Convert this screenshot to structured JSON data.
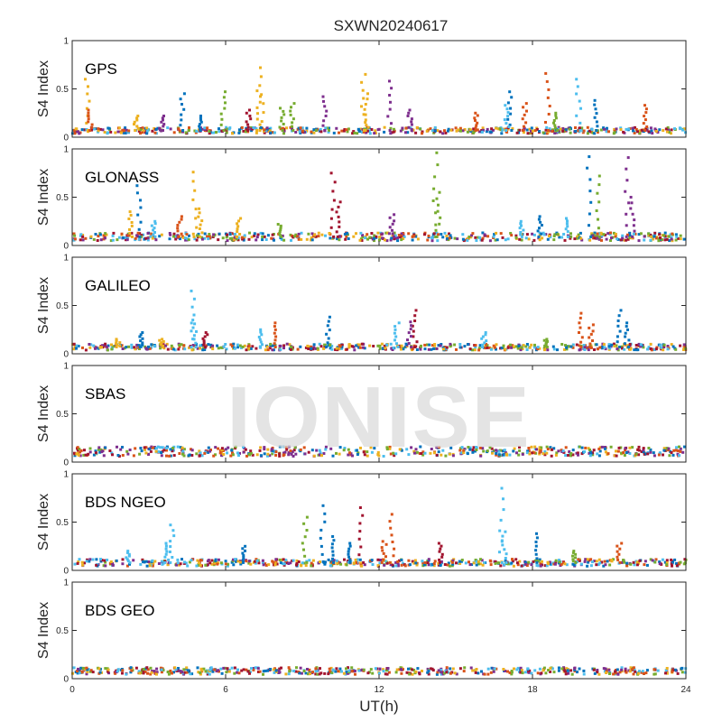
{
  "chart_data": {
    "type": "scatter",
    "title": "SXWN20240617",
    "xlabel": "UT(h)",
    "xlim": [
      0,
      24
    ],
    "xticks": [
      "0",
      "6",
      "12",
      "18",
      "24"
    ],
    "grid": false,
    "watermark": "IONISE",
    "series_colors": [
      "#0072BD",
      "#D95319",
      "#EDB120",
      "#7E2F8E",
      "#77AC30",
      "#4DBEEE",
      "#A2142F"
    ],
    "panels": [
      {
        "label": "GPS",
        "ylabel": "S4 Index",
        "ylim": [
          0,
          1
        ],
        "yticks": [
          "0",
          "0.5",
          "1"
        ],
        "baseline": 0.07,
        "spikes": [
          {
            "x": 0.6,
            "y": 0.6,
            "c": 2
          },
          {
            "x": 0.7,
            "y": 0.28,
            "c": 1
          },
          {
            "x": 2.5,
            "y": 0.22,
            "c": 2
          },
          {
            "x": 3.5,
            "y": 0.22,
            "c": 3
          },
          {
            "x": 4.3,
            "y": 0.45,
            "c": 0
          },
          {
            "x": 5.0,
            "y": 0.22,
            "c": 0
          },
          {
            "x": 5.9,
            "y": 0.47,
            "c": 4
          },
          {
            "x": 6.9,
            "y": 0.28,
            "c": 6
          },
          {
            "x": 7.4,
            "y": 0.72,
            "c": 2
          },
          {
            "x": 7.3,
            "y": 0.48,
            "c": 2
          },
          {
            "x": 8.2,
            "y": 0.3,
            "c": 4
          },
          {
            "x": 8.6,
            "y": 0.35,
            "c": 4
          },
          {
            "x": 9.9,
            "y": 0.42,
            "c": 3
          },
          {
            "x": 11.4,
            "y": 0.65,
            "c": 2
          },
          {
            "x": 11.5,
            "y": 0.45,
            "c": 2
          },
          {
            "x": 12.4,
            "y": 0.58,
            "c": 3
          },
          {
            "x": 13.2,
            "y": 0.28,
            "c": 3
          },
          {
            "x": 15.8,
            "y": 0.25,
            "c": 1
          },
          {
            "x": 17.1,
            "y": 0.47,
            "c": 0
          },
          {
            "x": 17.0,
            "y": 0.33,
            "c": 5
          },
          {
            "x": 17.7,
            "y": 0.35,
            "c": 1
          },
          {
            "x": 18.6,
            "y": 0.66,
            "c": 1
          },
          {
            "x": 18.9,
            "y": 0.25,
            "c": 4
          },
          {
            "x": 19.8,
            "y": 0.6,
            "c": 5
          },
          {
            "x": 20.5,
            "y": 0.38,
            "c": 0
          },
          {
            "x": 22.4,
            "y": 0.33,
            "c": 1
          }
        ]
      },
      {
        "label": "GLONASS",
        "ylabel": "S4 Index",
        "ylim": [
          0,
          1
        ],
        "yticks": [
          "0",
          "0.5",
          "1"
        ],
        "baseline": 0.09,
        "spikes": [
          {
            "x": 2.6,
            "y": 0.62,
            "c": 0
          },
          {
            "x": 2.3,
            "y": 0.35,
            "c": 2
          },
          {
            "x": 3.2,
            "y": 0.25,
            "c": 5
          },
          {
            "x": 4.2,
            "y": 0.3,
            "c": 1
          },
          {
            "x": 4.8,
            "y": 0.76,
            "c": 2
          },
          {
            "x": 5.0,
            "y": 0.38,
            "c": 2
          },
          {
            "x": 6.5,
            "y": 0.28,
            "c": 2
          },
          {
            "x": 8.1,
            "y": 0.22,
            "c": 4
          },
          {
            "x": 10.2,
            "y": 0.75,
            "c": 6
          },
          {
            "x": 10.4,
            "y": 0.45,
            "c": 6
          },
          {
            "x": 12.5,
            "y": 0.32,
            "c": 3
          },
          {
            "x": 14.2,
            "y": 0.96,
            "c": 4
          },
          {
            "x": 14.3,
            "y": 0.55,
            "c": 4
          },
          {
            "x": 17.6,
            "y": 0.25,
            "c": 5
          },
          {
            "x": 18.3,
            "y": 0.3,
            "c": 0
          },
          {
            "x": 19.3,
            "y": 0.28,
            "c": 5
          },
          {
            "x": 20.2,
            "y": 0.92,
            "c": 0
          },
          {
            "x": 20.6,
            "y": 0.72,
            "c": 4
          },
          {
            "x": 21.7,
            "y": 0.91,
            "c": 3
          },
          {
            "x": 21.9,
            "y": 0.5,
            "c": 3
          }
        ]
      },
      {
        "label": "GALILEO",
        "ylabel": "S4 Index",
        "ylim": [
          0,
          1
        ],
        "yticks": [
          "0",
          "0.5",
          "1"
        ],
        "baseline": 0.07,
        "spikes": [
          {
            "x": 1.8,
            "y": 0.15,
            "c": 2
          },
          {
            "x": 2.7,
            "y": 0.22,
            "c": 0
          },
          {
            "x": 3.5,
            "y": 0.15,
            "c": 2
          },
          {
            "x": 4.7,
            "y": 0.65,
            "c": 5
          },
          {
            "x": 4.8,
            "y": 0.35,
            "c": 5
          },
          {
            "x": 5.2,
            "y": 0.22,
            "c": 6
          },
          {
            "x": 7.4,
            "y": 0.25,
            "c": 5
          },
          {
            "x": 7.9,
            "y": 0.32,
            "c": 1
          },
          {
            "x": 10.0,
            "y": 0.38,
            "c": 0
          },
          {
            "x": 12.7,
            "y": 0.32,
            "c": 5
          },
          {
            "x": 13.4,
            "y": 0.45,
            "c": 6
          },
          {
            "x": 13.2,
            "y": 0.33,
            "c": 3
          },
          {
            "x": 16.1,
            "y": 0.22,
            "c": 5
          },
          {
            "x": 18.5,
            "y": 0.15,
            "c": 4
          },
          {
            "x": 19.9,
            "y": 0.42,
            "c": 1
          },
          {
            "x": 20.3,
            "y": 0.3,
            "c": 1
          },
          {
            "x": 21.4,
            "y": 0.45,
            "c": 0
          },
          {
            "x": 21.7,
            "y": 0.32,
            "c": 0
          }
        ]
      },
      {
        "label": "SBAS",
        "ylabel": "S4 Index",
        "ylim": [
          0,
          1
        ],
        "yticks": [
          "0",
          "0.5",
          "1"
        ],
        "baseline": 0.11,
        "spikes": []
      },
      {
        "label": "BDS NGEO",
        "ylabel": "S4 Index",
        "ylim": [
          0,
          1
        ],
        "yticks": [
          "0",
          "0.5",
          "1"
        ],
        "baseline": 0.08,
        "spikes": [
          {
            "x": 2.2,
            "y": 0.2,
            "c": 5
          },
          {
            "x": 3.9,
            "y": 0.47,
            "c": 5
          },
          {
            "x": 3.7,
            "y": 0.28,
            "c": 5
          },
          {
            "x": 6.7,
            "y": 0.25,
            "c": 0
          },
          {
            "x": 9.1,
            "y": 0.55,
            "c": 4
          },
          {
            "x": 9.8,
            "y": 0.67,
            "c": 0
          },
          {
            "x": 10.2,
            "y": 0.35,
            "c": 0
          },
          {
            "x": 10.8,
            "y": 0.28,
            "c": 0
          },
          {
            "x": 11.3,
            "y": 0.65,
            "c": 6
          },
          {
            "x": 12.5,
            "y": 0.58,
            "c": 1
          },
          {
            "x": 12.2,
            "y": 0.3,
            "c": 1
          },
          {
            "x": 14.4,
            "y": 0.28,
            "c": 6
          },
          {
            "x": 16.8,
            "y": 0.85,
            "c": 5
          },
          {
            "x": 16.9,
            "y": 0.4,
            "c": 5
          },
          {
            "x": 18.2,
            "y": 0.38,
            "c": 0
          },
          {
            "x": 19.6,
            "y": 0.2,
            "c": 4
          },
          {
            "x": 21.4,
            "y": 0.28,
            "c": 1
          }
        ]
      },
      {
        "label": "BDS GEO",
        "ylabel": "S4 Index",
        "ylim": [
          0,
          1
        ],
        "yticks": [
          "0",
          "0.5",
          "1"
        ],
        "baseline": 0.08,
        "spikes": []
      }
    ]
  }
}
